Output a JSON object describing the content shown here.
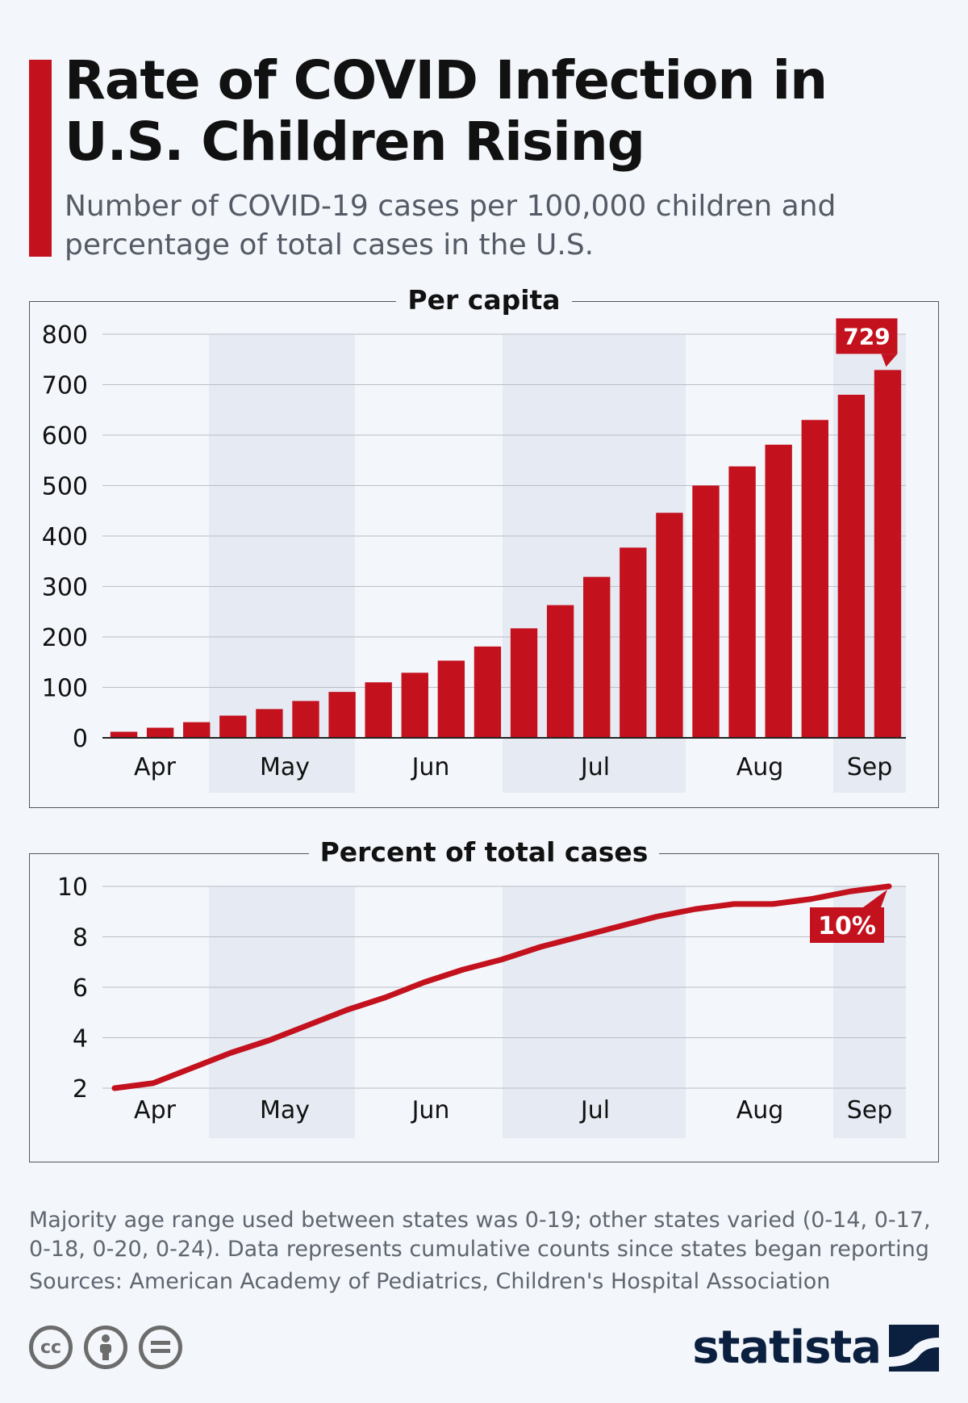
{
  "header": {
    "title": "Rate of COVID Infection in U.S. Children Rising",
    "subtitle": "Number of COVID-19 cases per 100,000 children and percentage of total cases in the U.S."
  },
  "colors": {
    "accent": "#c3111e",
    "band": "#e6ebf3",
    "grid": "#b9bec6",
    "text": "#111111"
  },
  "chart_data": [
    {
      "type": "bar",
      "title": "Per capita",
      "ylim": [
        0,
        800
      ],
      "yticks": [
        0,
        100,
        200,
        300,
        400,
        500,
        600,
        700,
        800
      ],
      "month_labels": [
        "Apr",
        "May",
        "Jun",
        "Jul",
        "Aug",
        "Sep"
      ],
      "values": [
        12,
        20,
        31,
        44,
        57,
        73,
        91,
        110,
        129,
        153,
        181,
        217,
        263,
        319,
        377,
        446,
        500,
        538,
        581,
        630,
        680,
        729
      ],
      "callout": "729",
      "grid": true,
      "color": "#c3111e"
    },
    {
      "type": "line",
      "title": "Percent of total cases",
      "ylim": [
        2,
        10
      ],
      "yticks": [
        2,
        4,
        6,
        8,
        10
      ],
      "month_labels": [
        "Apr",
        "May",
        "Jun",
        "Jul",
        "Aug",
        "Sep"
      ],
      "values": [
        2.0,
        2.2,
        2.8,
        3.4,
        3.9,
        4.5,
        5.1,
        5.6,
        6.2,
        6.7,
        7.1,
        7.6,
        8.0,
        8.4,
        8.8,
        9.1,
        9.3,
        9.3,
        9.5,
        9.8,
        10.0
      ],
      "callout": "10%",
      "grid": true,
      "color": "#c3111e"
    }
  ],
  "footer": {
    "note_line1": "Majority age range used between states was 0-19; other states varied (0-14, 0-17,",
    "note_line2": "0-18, 0-20, 0-24). Data represents cumulative counts since states began reporting",
    "sources": "Sources: American Academy of Pediatrics, Children's Hospital Association",
    "license_icons": [
      "cc-icon",
      "attribution-icon",
      "no-derivatives-icon"
    ],
    "brand": "statista"
  }
}
